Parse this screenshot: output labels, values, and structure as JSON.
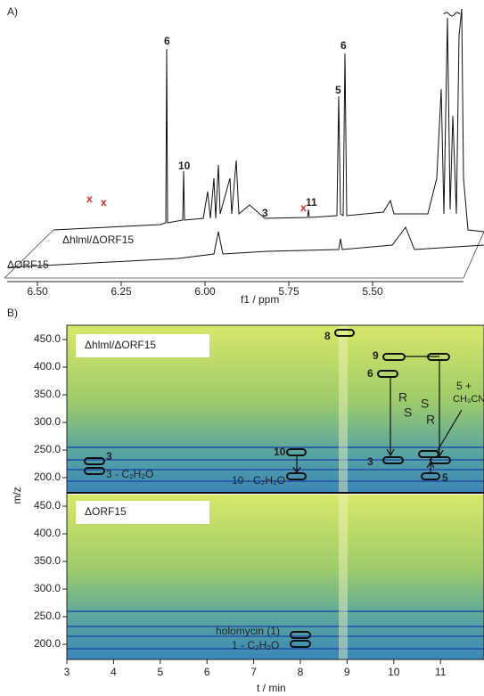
{
  "panel_a": {
    "label": "A)",
    "x_axis": {
      "label": "f1 / ppm",
      "ticks": [
        "6.50",
        "6.25",
        "6.00",
        "5.75",
        "5.50"
      ]
    },
    "trace_labels": [
      "Δhlml/ΔORF15",
      "ΔORF15"
    ],
    "peak_labels": [
      "6",
      "10",
      "3",
      "11",
      "6",
      "5"
    ],
    "impurity_marks": [
      "x",
      "x",
      "x"
    ]
  },
  "panel_b": {
    "label": "B)",
    "x_axis": {
      "label": "t / min",
      "ticks": [
        "3",
        "4",
        "5",
        "6",
        "7",
        "8",
        "9",
        "10",
        "11"
      ]
    },
    "y_axis": {
      "label": "m/z",
      "ticks": [
        "450.0",
        "400.0",
        "350.0",
        "300.0",
        "250.0",
        "200.0"
      ]
    },
    "top": {
      "title": "Δhlml/ΔORF15",
      "annotations": [
        "3",
        "3 - C₂H₂O",
        "10",
        "10 - C₂H₂O",
        "8",
        "9",
        "6",
        "3",
        "5 +",
        "CH₃CN",
        "5",
        "R",
        "S",
        "S",
        "R"
      ]
    },
    "bottom": {
      "title": "ΔORF15",
      "annotations": [
        "holomycin (1)",
        "1 - C₂H₂O"
      ]
    }
  }
}
